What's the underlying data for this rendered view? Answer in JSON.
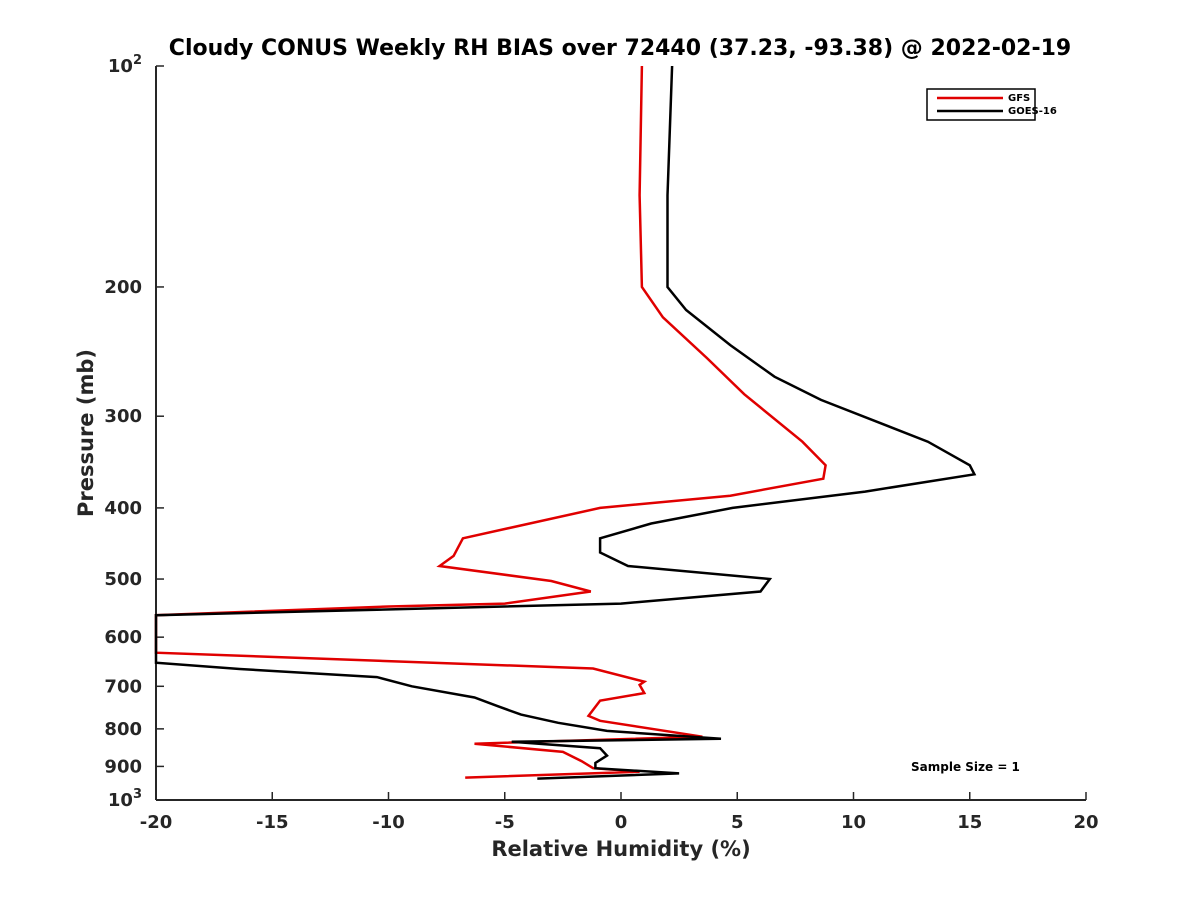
{
  "chart_data": {
    "type": "line",
    "title": "Cloudy CONUS Weekly RH BIAS over 72440 (37.23, -93.38) @ 2022-02-19",
    "xlabel": "Relative Humidity (%)",
    "ylabel": "Pressure (mb)",
    "xlim": [
      -20,
      20
    ],
    "ylim": [
      100,
      1000
    ],
    "y_scale": "log",
    "y_reversed": true,
    "x_ticks": [
      "-20",
      "-15",
      "-10",
      "-5",
      "0",
      "5",
      "10",
      "15",
      "20"
    ],
    "y_ticks": [
      {
        "value": 100,
        "base": "10",
        "exp": "2"
      },
      {
        "value": 200,
        "label": "200"
      },
      {
        "value": 300,
        "label": "300"
      },
      {
        "value": 400,
        "label": "400"
      },
      {
        "value": 500,
        "label": "500"
      },
      {
        "value": 600,
        "label": "600"
      },
      {
        "value": 700,
        "label": "700"
      },
      {
        "value": 800,
        "label": "800"
      },
      {
        "value": 900,
        "label": "900"
      },
      {
        "value": 1000,
        "base": "10",
        "exp": "3"
      }
    ],
    "legend_position": "top-right",
    "annotation": "Sample Size = 1",
    "series": [
      {
        "name": "GFS",
        "color": "#e00000",
        "points": [
          [
            0.9,
            100
          ],
          [
            0.8,
            150
          ],
          [
            0.9,
            200
          ],
          [
            1.8,
            220
          ],
          [
            3.7,
            250
          ],
          [
            5.3,
            280
          ],
          [
            7.8,
            325
          ],
          [
            8.8,
            350
          ],
          [
            8.7,
            365
          ],
          [
            4.7,
            385
          ],
          [
            -0.9,
            400
          ],
          [
            -6.8,
            440
          ],
          [
            -7.2,
            465
          ],
          [
            -7.8,
            480
          ],
          [
            -3.0,
            503
          ],
          [
            -1.3,
            520
          ],
          [
            -5.0,
            540
          ],
          [
            -10.0,
            545
          ],
          [
            -20.0,
            560
          ],
          [
            -20.0,
            630
          ],
          [
            -1.2,
            662
          ],
          [
            1.0,
            690
          ],
          [
            0.8,
            697
          ],
          [
            1.0,
            715
          ],
          [
            -0.9,
            732
          ],
          [
            -1.4,
            768
          ],
          [
            -0.9,
            780
          ],
          [
            3.5,
            820
          ],
          [
            -6.3,
            838
          ],
          [
            -2.5,
            860
          ],
          [
            -1.7,
            885
          ],
          [
            -1.2,
            905
          ],
          [
            0.8,
            915
          ],
          [
            -6.7,
            932
          ]
        ]
      },
      {
        "name": "GOES-16",
        "color": "#000000",
        "points": [
          [
            2.2,
            100
          ],
          [
            2.0,
            150
          ],
          [
            2.0,
            200
          ],
          [
            2.8,
            215
          ],
          [
            4.7,
            240
          ],
          [
            6.6,
            265
          ],
          [
            8.6,
            285
          ],
          [
            13.2,
            325
          ],
          [
            15.0,
            350
          ],
          [
            15.2,
            360
          ],
          [
            10.5,
            380
          ],
          [
            4.8,
            400
          ],
          [
            1.3,
            420
          ],
          [
            -0.9,
            440
          ],
          [
            -0.9,
            460
          ],
          [
            0.3,
            480
          ],
          [
            6.4,
            500
          ],
          [
            6.0,
            520
          ],
          [
            0.0,
            540
          ],
          [
            -20.0,
            560
          ],
          [
            -20.0,
            650
          ],
          [
            -16.4,
            663
          ],
          [
            -10.5,
            680
          ],
          [
            -9.0,
            700
          ],
          [
            -6.3,
            725
          ],
          [
            -5.3,
            745
          ],
          [
            -4.3,
            765
          ],
          [
            -2.7,
            785
          ],
          [
            -0.6,
            805
          ],
          [
            4.3,
            825
          ],
          [
            -4.7,
            833
          ],
          [
            -0.9,
            850
          ],
          [
            -0.6,
            870
          ],
          [
            -1.1,
            890
          ],
          [
            -1.1,
            905
          ],
          [
            2.5,
            920
          ],
          [
            -3.6,
            935
          ]
        ]
      }
    ]
  }
}
